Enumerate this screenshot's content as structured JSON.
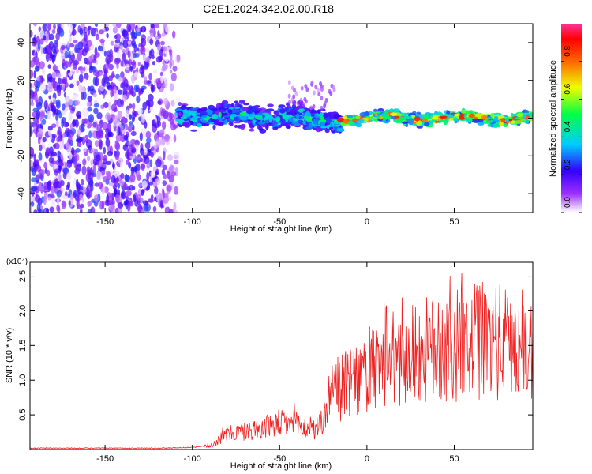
{
  "title": "C2E1.2024.342.02.00.R18",
  "colors": {
    "snr_line": "#ee2222",
    "spectrogram_background": "#ffffff",
    "frame": "#000000"
  },
  "chart_data": [
    {
      "type": "heatmap",
      "xlabel": "Height of straight line (km)",
      "ylabel": "Frequency (Hz)",
      "xlim": [
        -193,
        95
      ],
      "ylim": [
        -50,
        50
      ],
      "x_ticks": [
        -150,
        -100,
        -50,
        0,
        50
      ],
      "y_ticks": [
        -40,
        -20,
        0,
        20,
        40
      ],
      "grid": false,
      "colorbar": {
        "label": "Normalized spectral amplitude",
        "range": [
          0.0,
          1.0
        ],
        "ticks": [
          0.0,
          0.2,
          0.4,
          0.6,
          0.8
        ],
        "colormap": "rainbow"
      },
      "regions": [
        {
          "x_range": [
            -193,
            -108
          ],
          "freq_range": [
            -50,
            50
          ],
          "amplitude": 0.15
        },
        {
          "x_range": [
            -108,
            -35
          ],
          "freq_range": [
            -8,
            8
          ],
          "center_freq": 1,
          "amplitude": 0.45
        },
        {
          "x_range": [
            -35,
            -15
          ],
          "freq_range": [
            -6,
            6
          ],
          "center_freq": -2,
          "amplitude": 0.5
        },
        {
          "x_range": [
            -15,
            95
          ],
          "freq_range": [
            -4,
            4
          ],
          "center_freq": 0,
          "amplitude": 0.85
        }
      ]
    },
    {
      "type": "line",
      "xlabel": "Height of straight line (km)",
      "ylabel": "SNR (10 * v/v)",
      "y_multiplier": "(x10⁴)",
      "xlim": [
        -193,
        95
      ],
      "ylim": [
        0,
        2.7
      ],
      "x_ticks": [
        -150,
        -100,
        -50,
        0,
        50
      ],
      "y_ticks": [
        0.5,
        1.0,
        1.5,
        2.0,
        2.5
      ],
      "grid": false,
      "series": [
        {
          "x": [
            -193,
            -150,
            -120,
            -100,
            -90,
            -85,
            -80,
            -70,
            -60,
            -50,
            -40,
            -35,
            -30,
            -25,
            -22,
            -18,
            -10,
            0,
            10,
            20,
            30,
            40,
            50,
            60,
            70,
            80,
            90,
            95
          ],
          "values": [
            0.02,
            0.02,
            0.02,
            0.03,
            0.06,
            0.14,
            0.22,
            0.26,
            0.3,
            0.38,
            0.36,
            0.3,
            0.28,
            0.42,
            0.72,
            0.85,
            0.95,
            1.1,
            1.2,
            1.32,
            1.4,
            1.45,
            1.48,
            1.55,
            1.58,
            1.52,
            1.5,
            1.45
          ]
        }
      ]
    }
  ]
}
